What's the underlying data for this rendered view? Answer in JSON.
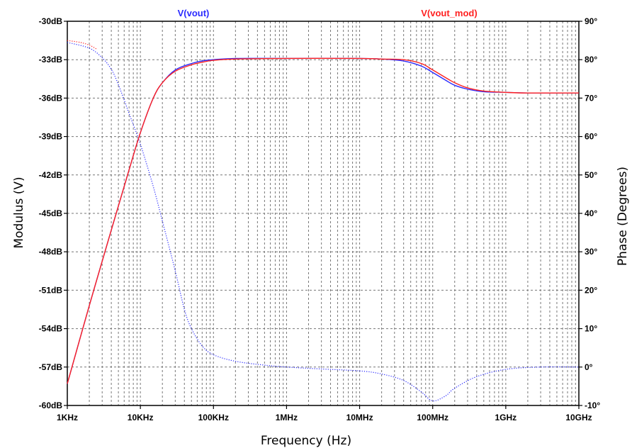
{
  "chart_data": {
    "type": "line",
    "xlabel": "Frequency (Hz)",
    "ylabel_left": "Modulus (V)",
    "ylabel_right": "Phase (Degrees)",
    "x_scale": "log",
    "xlim_hz": [
      1000,
      10000000000
    ],
    "ylim_left_db": [
      -60,
      -30
    ],
    "ylim_right_deg": [
      -10,
      90
    ],
    "grid": true,
    "x_ticks": [
      {
        "value": 1000,
        "label": "1KHz"
      },
      {
        "value": 10000,
        "label": "10KHz"
      },
      {
        "value": 100000,
        "label": "100KHz"
      },
      {
        "value": 1000000,
        "label": "1MHz"
      },
      {
        "value": 10000000,
        "label": "10MHz"
      },
      {
        "value": 100000000,
        "label": "100MHz"
      },
      {
        "value": 1000000000,
        "label": "1GHz"
      },
      {
        "value": 10000000000,
        "label": "10GHz"
      }
    ],
    "y_left_ticks": [
      {
        "value": -30,
        "label": "-30dB"
      },
      {
        "value": -33,
        "label": "-33dB"
      },
      {
        "value": -36,
        "label": "-36dB"
      },
      {
        "value": -39,
        "label": "-39dB"
      },
      {
        "value": -42,
        "label": "-42dB"
      },
      {
        "value": -45,
        "label": "-45dB"
      },
      {
        "value": -48,
        "label": "-48dB"
      },
      {
        "value": -51,
        "label": "-51dB"
      },
      {
        "value": -54,
        "label": "-54dB"
      },
      {
        "value": -57,
        "label": "-57dB"
      },
      {
        "value": -60,
        "label": "-60dB"
      }
    ],
    "y_right_ticks": [
      {
        "value": 90,
        "label": "90°"
      },
      {
        "value": 80,
        "label": "80°"
      },
      {
        "value": 70,
        "label": "70°"
      },
      {
        "value": 60,
        "label": "60°"
      },
      {
        "value": 50,
        "label": "50°"
      },
      {
        "value": 40,
        "label": "40°"
      },
      {
        "value": 30,
        "label": "30°"
      },
      {
        "value": 20,
        "label": "20°"
      },
      {
        "value": 10,
        "label": "10°"
      },
      {
        "value": 0,
        "label": "0°"
      },
      {
        "value": -10,
        "label": "-10°"
      }
    ],
    "series": [
      {
        "name": "V(vout)",
        "color": "#2a2aff",
        "magnitude": {
          "x": [
            1000,
            2000,
            4000,
            7000,
            10000,
            15000,
            20000,
            30000,
            50000,
            70000,
            100000,
            200000,
            1000000,
            10000000,
            20000000,
            40000000,
            70000000,
            100000000,
            150000000,
            200000000,
            300000000,
            500000000,
            1000000000,
            2000000000,
            10000000000
          ],
          "y": [
            -58.3,
            -52.2,
            -46.3,
            -41.6,
            -38.7,
            -36.0,
            -34.8,
            -33.8,
            -33.3,
            -33.1,
            -33.0,
            -32.9,
            -32.9,
            -32.9,
            -32.95,
            -33.1,
            -33.5,
            -34.0,
            -34.6,
            -35.0,
            -35.3,
            -35.5,
            -35.55,
            -35.6,
            -35.6
          ]
        },
        "phase": {
          "x": [
            1000,
            2000,
            3000,
            4000,
            5000,
            7000,
            10000,
            15000,
            20000,
            30000,
            40000,
            50000,
            70000,
            100000,
            200000,
            500000,
            1000000,
            3000000,
            10000000,
            20000000,
            40000000,
            70000000,
            100000000,
            150000000,
            200000000,
            400000000,
            1000000000,
            3000000000,
            10000000000
          ],
          "y": [
            84.5,
            83.0,
            80.5,
            77.5,
            73.5,
            66.0,
            58.0,
            47.0,
            38.0,
            25.0,
            15.0,
            10.0,
            5.5,
            3.2,
            1.5,
            0.5,
            0.0,
            -0.5,
            -1.0,
            -1.8,
            -3.5,
            -6.5,
            -8.8,
            -7.5,
            -5.5,
            -2.5,
            -0.6,
            0.0,
            0.0
          ]
        }
      },
      {
        "name": "V(vout_mod)",
        "color": "#ff2020",
        "magnitude": {
          "x": [
            1000,
            2000,
            4000,
            7000,
            10000,
            15000,
            20000,
            30000,
            50000,
            70000,
            100000,
            200000,
            1000000,
            10000000,
            20000000,
            40000000,
            70000000,
            100000000,
            150000000,
            200000000,
            300000000,
            500000000,
            1000000000,
            2000000000,
            10000000000
          ],
          "y": [
            -58.3,
            -52.2,
            -46.3,
            -41.6,
            -38.7,
            -36.0,
            -34.8,
            -33.9,
            -33.4,
            -33.2,
            -33.05,
            -32.95,
            -32.9,
            -32.9,
            -32.95,
            -33.0,
            -33.3,
            -33.8,
            -34.4,
            -34.8,
            -35.2,
            -35.45,
            -35.55,
            -35.6,
            -35.6
          ]
        },
        "phase": {
          "x": [
            1000,
            1500,
            2000,
            2500
          ],
          "y": [
            85.0,
            84.5,
            83.8,
            82.8
          ]
        }
      }
    ]
  }
}
